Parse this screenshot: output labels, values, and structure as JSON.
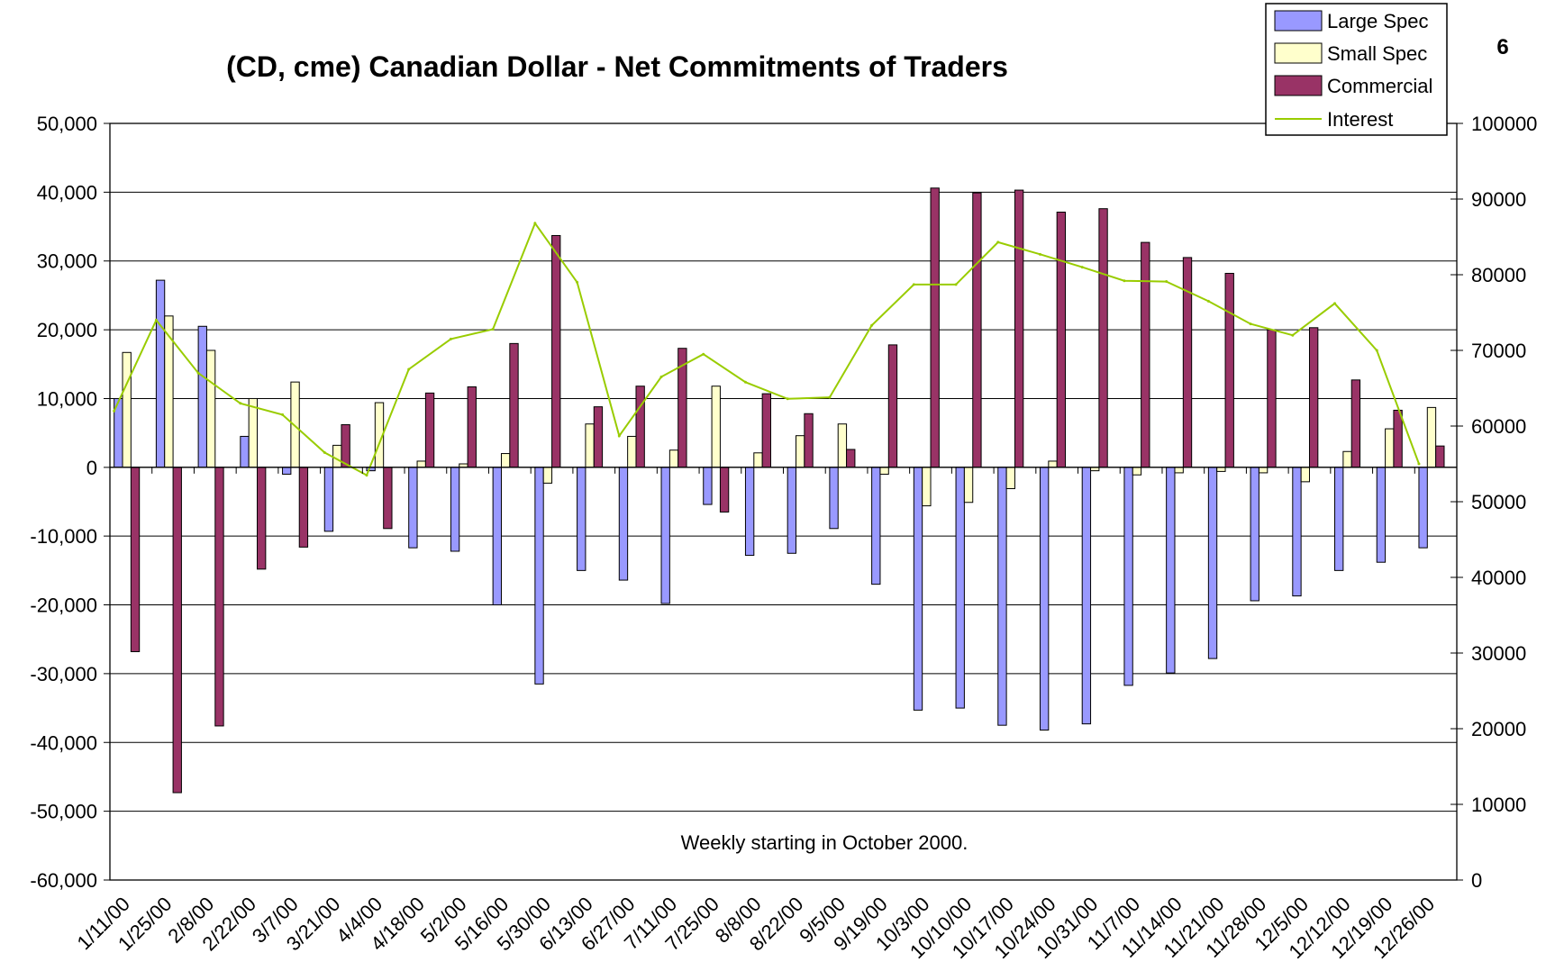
{
  "page_number": "6",
  "colors": {
    "large_spec": "#9999ff",
    "small_spec": "#ffffcc",
    "commercial": "#993366",
    "interest": "#99cc00",
    "grid": "#000000"
  },
  "chart_data": {
    "type": "bar",
    "title": "(CD, cme) Canadian Dollar - Net Commitments of Traders",
    "annotation": "Weekly starting in October 2000.",
    "categories": [
      "1/11/00",
      "1/25/00",
      "2/8/00",
      "2/22/00",
      "3/7/00",
      "3/21/00",
      "4/4/00",
      "4/18/00",
      "5/2/00",
      "5/16/00",
      "5/30/00",
      "6/13/00",
      "6/27/00",
      "7/11/00",
      "7/25/00",
      "8/8/00",
      "8/22/00",
      "9/5/00",
      "9/19/00",
      "10/3/00",
      "10/10/00",
      "10/17/00",
      "10/24/00",
      "10/31/00",
      "11/7/00",
      "11/14/00",
      "11/21/00",
      "11/28/00",
      "12/5/00",
      "12/12/00",
      "12/19/00",
      "12/26/00"
    ],
    "ylim": [
      -60000,
      50000
    ],
    "y_ticks": [
      "50,000",
      "40,000",
      "30,000",
      "20,000",
      "10,000",
      "0",
      "-10,000",
      "-20,000",
      "-30,000",
      "-40,000",
      "-50,000",
      "-60,000"
    ],
    "y2lim": [
      0,
      100000
    ],
    "y2_ticks": [
      "100000",
      "90000",
      "80000",
      "70000",
      "60000",
      "50000",
      "40000",
      "30000",
      "20000",
      "10000",
      "0"
    ],
    "legend_position": "top-right",
    "series": [
      {
        "name": "Large Spec",
        "type": "bar",
        "values": [
          10000,
          27200,
          20500,
          4500,
          -1000,
          -9300,
          -500,
          -11700,
          -12200,
          -20000,
          -31500,
          -15000,
          -16400,
          -19800,
          -5400,
          -12800,
          -12500,
          -8900,
          -17000,
          -35300,
          -35000,
          -37500,
          -38200,
          -37300,
          -31700,
          -29900,
          -27800,
          -19400,
          -18700,
          -15000,
          -13800,
          -11700
        ]
      },
      {
        "name": "Small Spec",
        "type": "bar",
        "values": [
          16700,
          22000,
          17000,
          10000,
          12400,
          3200,
          9400,
          900,
          500,
          2000,
          -2300,
          6300,
          4500,
          2500,
          11800,
          2100,
          4600,
          6300,
          -1000,
          -5600,
          -5100,
          -3100,
          900,
          -500,
          -1100,
          -800,
          -600,
          -800,
          -2100,
          2300,
          5600,
          8700
        ]
      },
      {
        "name": "Commercial",
        "type": "bar",
        "values": [
          -26800,
          -47300,
          -37600,
          -14800,
          -11600,
          6200,
          -8900,
          10800,
          11700,
          18000,
          33700,
          8800,
          11800,
          17300,
          -6500,
          10700,
          7800,
          2600,
          17800,
          40600,
          39900,
          40300,
          37100,
          37600,
          32700,
          30500,
          28200,
          20000,
          20300,
          12700,
          8300,
          3100
        ]
      },
      {
        "name": "Interest",
        "type": "line",
        "axis": "right",
        "values": [
          62000,
          74000,
          67000,
          63000,
          61500,
          56500,
          53500,
          67500,
          71500,
          72800,
          86800,
          79000,
          58700,
          66500,
          69500,
          65800,
          63600,
          63800,
          73300,
          78700,
          78700,
          84300,
          82700,
          81000,
          79200,
          79100,
          76500,
          73500,
          72000,
          76200,
          70000,
          55000
        ]
      }
    ]
  }
}
